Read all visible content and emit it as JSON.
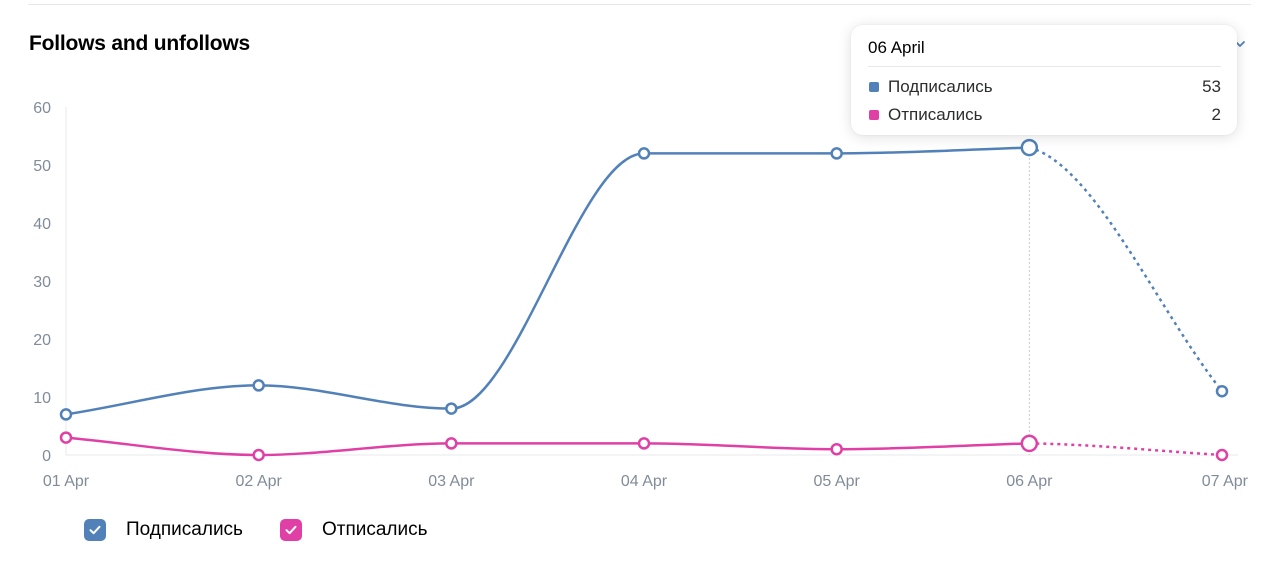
{
  "header": {
    "title": "Follows and unfollows"
  },
  "colors": {
    "follows": "#5181b8",
    "unfollows": "#e040a6",
    "axis_text": "#818c99",
    "grid": "#e7e8ec"
  },
  "chart_data": {
    "type": "line",
    "title": "Follows and unfollows",
    "categories": [
      "01 Apr",
      "02 Apr",
      "03 Apr",
      "04 Apr",
      "05 Apr",
      "06 Apr",
      "07 Apr"
    ],
    "series": [
      {
        "name": "Подписались",
        "values": [
          7,
          12,
          8,
          52,
          52,
          53,
          11
        ],
        "color": "#5181b8"
      },
      {
        "name": "Отписались",
        "values": [
          3,
          0,
          2,
          2,
          1,
          2,
          0
        ],
        "color": "#e040a6"
      }
    ],
    "y_ticks": [
      "0",
      "10",
      "20",
      "30",
      "40",
      "50",
      "60"
    ],
    "ylim": [
      0,
      60
    ],
    "grid": false,
    "legend": "bottom-left",
    "dashed_last_segment": true,
    "highlighted_category": "06 Apr"
  },
  "tooltip": {
    "date": "06 April",
    "rows": [
      {
        "label": "Подписались",
        "value": "53"
      },
      {
        "label": "Отписались",
        "value": "2"
      }
    ]
  },
  "legend": {
    "items": [
      {
        "label": "Подписались",
        "checked": true
      },
      {
        "label": "Отписались",
        "checked": true
      }
    ]
  }
}
